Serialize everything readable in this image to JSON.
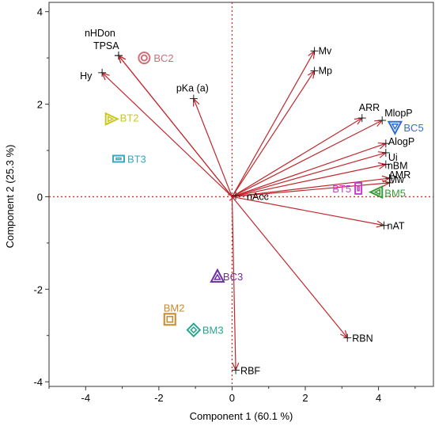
{
  "chart_data": {
    "type": "scatter",
    "subtype": "biplot",
    "xlabel": "Component 1  (60.1 %)",
    "ylabel": "Component 2  (25.3 %)",
    "xlim": [
      -5,
      5.5
    ],
    "ylim": [
      -4.1,
      4.2
    ],
    "xticks": [
      -4,
      -2,
      0,
      2,
      4
    ],
    "yticks": [
      -4,
      -2,
      0,
      2,
      4
    ],
    "grid": false,
    "zero_lines": true,
    "arrow_color": "#c0282d",
    "zero_line_color": "#c0392b",
    "loadings": [
      {
        "label": "nHDon",
        "x": -3.1,
        "y": 3.05
      },
      {
        "label": "TPSA",
        "x": -3.1,
        "y": 3.05
      },
      {
        "label": "Hy",
        "x": -3.55,
        "y": 2.68
      },
      {
        "label": "pKa (a)",
        "x": -1.05,
        "y": 2.12
      },
      {
        "label": "Mv",
        "x": 2.25,
        "y": 3.15
      },
      {
        "label": "Mp",
        "x": 2.25,
        "y": 2.72
      },
      {
        "label": "ARR",
        "x": 3.55,
        "y": 1.7
      },
      {
        "label": "MlopP",
        "x": 4.1,
        "y": 1.65
      },
      {
        "label": "AlogP",
        "x": 4.2,
        "y": 1.15
      },
      {
        "label": "Ui",
        "x": 4.2,
        "y": 0.95
      },
      {
        "label": "nBM",
        "x": 4.2,
        "y": 0.7
      },
      {
        "label": "Mw",
        "x": 4.3,
        "y": 0.4
      },
      {
        "label": "AMR",
        "x": 4.3,
        "y": 0.3
      },
      {
        "label": "nAcc",
        "x": 0.1,
        "y": 0.02
      },
      {
        "label": "nAT",
        "x": 4.15,
        "y": -0.62
      },
      {
        "label": "RBN",
        "x": 3.15,
        "y": -3.05
      },
      {
        "label": "RBF",
        "x": 0.1,
        "y": -3.75
      }
    ],
    "observations": [
      {
        "label": "BC2",
        "x": -2.4,
        "y": 3.0,
        "marker": "circle",
        "color": "#d06d7a"
      },
      {
        "label": "BT2",
        "x": -3.3,
        "y": 1.68,
        "marker": "triangle-right",
        "color": "#c8c81e"
      },
      {
        "label": "BT3",
        "x": -3.1,
        "y": 0.82,
        "marker": "rect",
        "color": "#3aa6c0"
      },
      {
        "label": "BC5",
        "x": 4.45,
        "y": 1.5,
        "marker": "triangle-down",
        "color": "#2f6ed8"
      },
      {
        "label": "BT5",
        "x": 3.45,
        "y": 0.18,
        "marker": "rect-tall",
        "color": "#c23ec6"
      },
      {
        "label": "BM5",
        "x": 3.95,
        "y": 0.1,
        "marker": "triangle-left",
        "color": "#3a9a38"
      },
      {
        "label": "BC3",
        "x": -0.4,
        "y": -1.72,
        "marker": "triangle-up",
        "color": "#6a2fa0"
      },
      {
        "label": "BM2",
        "x": -1.7,
        "y": -2.65,
        "marker": "square",
        "color": "#c98a2a"
      },
      {
        "label": "BM3",
        "x": -1.05,
        "y": -2.88,
        "marker": "diamond",
        "color": "#2aa58e"
      }
    ]
  }
}
